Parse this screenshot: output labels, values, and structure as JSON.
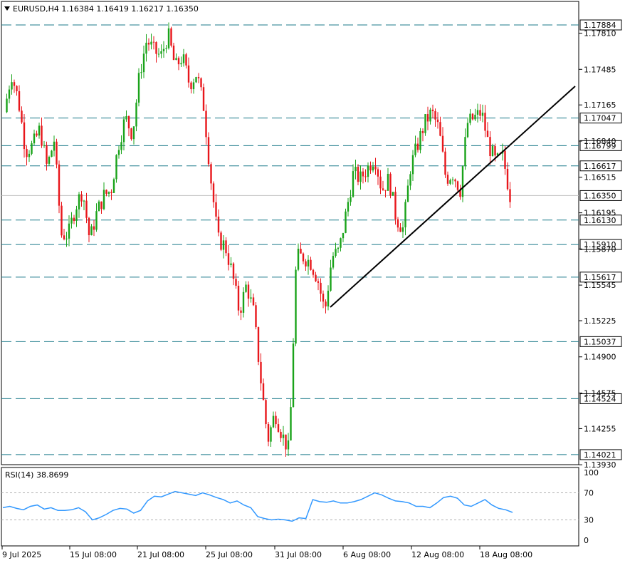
{
  "header": {
    "symbol_line": "EURUSD,H4  1.16384 1.16419 1.16217 1.16350",
    "dropdown_icon": "triangle-down-icon"
  },
  "rsi_panel": {
    "label": "RSI(14) 38.8699",
    "levels": [
      "100",
      "70",
      "30",
      "0"
    ]
  },
  "colors": {
    "bull": "#1aa31a",
    "bear": "#e8161b",
    "level_line": "#1b7a8a",
    "trendline": "#000000",
    "rsi_line": "#3399ff",
    "price_tag_bg": "#ffffff"
  },
  "chart_data": [
    {
      "type": "candlestick",
      "symbol": "EURUSD",
      "timeframe": "H4",
      "ylim": [
        1.138,
        1.181
      ],
      "y_tick_labels": [
        "1.17810",
        "1.17485",
        "1.17165",
        "1.16840",
        "1.16515",
        "1.16195",
        "1.15870",
        "1.15545",
        "1.15225",
        "1.14900",
        "1.14575",
        "1.14255",
        "1.13930"
      ],
      "x_tick_labels": [
        "9 Jul 2025",
        "15 Jul 08:00",
        "21 Jul 08:00",
        "25 Jul 08:00",
        "31 Jul 08:00",
        "6 Aug 08:00",
        "12 Aug 08:00",
        "18 Aug 08:00"
      ],
      "current_price": "1.16350",
      "horizontal_levels": [
        "1.17884",
        "1.17047",
        "1.16799",
        "1.16617",
        "1.16130",
        "1.15910",
        "1.15617",
        "1.15037",
        "1.14524",
        "1.14021"
      ],
      "trendline": {
        "from": [
          1.1525,
          "4 Aug"
        ],
        "to": [
          1.1737,
          "22 Aug"
        ]
      },
      "close_path": [
        1.171,
        1.1745,
        1.172,
        1.1675,
        1.168,
        1.1695,
        1.166,
        1.1685,
        1.16,
        1.16,
        1.1625,
        1.164,
        1.1595,
        1.162,
        1.1635,
        1.164,
        1.168,
        1.1705,
        1.169,
        1.1745,
        1.1775,
        1.1765,
        1.176,
        1.178,
        1.175,
        1.176,
        1.1735,
        1.1745,
        1.1715,
        1.165,
        1.1595,
        1.159,
        1.1565,
        1.153,
        1.1555,
        1.153,
        1.147,
        1.1415,
        1.144,
        1.142,
        1.1405,
        1.158,
        1.158,
        1.1575,
        1.156,
        1.153,
        1.158,
        1.1585,
        1.162,
        1.1655,
        1.165,
        1.166,
        1.167,
        1.164,
        1.165,
        1.1615,
        1.1605,
        1.166,
        1.168,
        1.17,
        1.171,
        1.1695,
        1.165,
        1.1655,
        1.164,
        1.17,
        1.1705,
        1.171,
        1.168,
        1.1665,
        1.167,
        1.1635
      ]
    },
    {
      "type": "line",
      "name": "RSI(14) 38.8699",
      "ylim": [
        0,
        100
      ],
      "y_tick_labels": [
        "100",
        "70",
        "30",
        "0"
      ],
      "values": [
        48,
        50,
        47,
        45,
        50,
        52,
        46,
        48,
        44,
        44,
        45,
        48,
        42,
        30,
        33,
        38,
        44,
        47,
        46,
        40,
        44,
        58,
        65,
        64,
        68,
        72,
        70,
        68,
        66,
        70,
        67,
        63,
        60,
        55,
        58,
        52,
        48,
        35,
        32,
        30,
        31,
        30,
        28,
        33,
        32,
        60,
        57,
        56,
        58,
        55,
        55,
        57,
        60,
        65,
        70,
        67,
        62,
        58,
        57,
        55,
        50,
        50,
        48,
        55,
        63,
        65,
        62,
        52,
        50,
        55,
        60,
        52,
        47,
        45,
        41
      ]
    }
  ]
}
